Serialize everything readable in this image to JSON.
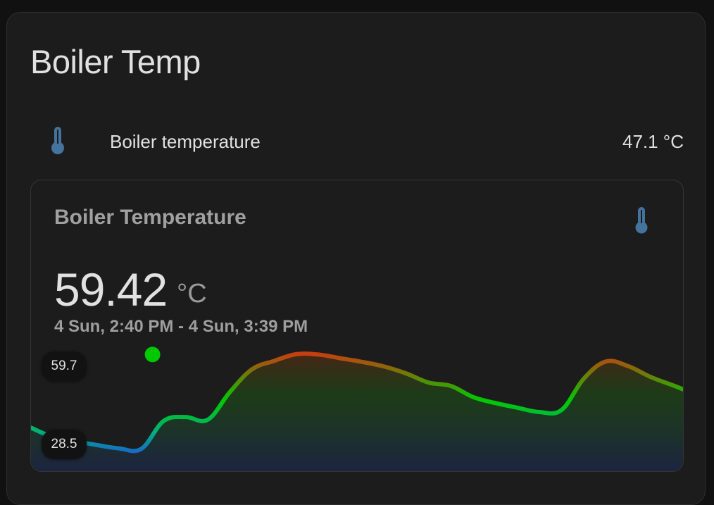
{
  "card": {
    "title": "Boiler Temp"
  },
  "entity": {
    "name": "Boiler temperature",
    "state": "47.1 °C",
    "icon": "thermometer-icon"
  },
  "graph_card": {
    "title": "Boiler Temperature",
    "icon": "thermometer-icon",
    "value": "59.42",
    "unit": "°C",
    "time_range": "4 Sun, 2:40 PM - 4 Sun, 3:39 PM",
    "y_max_label": "59.7",
    "y_min_label": "28.5"
  },
  "colors": {
    "icon": "#44739e",
    "low": "#1e53e0",
    "mid": "#00c800",
    "high": "#c83c10",
    "point": "#00c800"
  },
  "chart_data": {
    "type": "line",
    "title": "",
    "xlabel": "",
    "ylabel": "",
    "ylim": [
      28.5,
      59.7
    ],
    "x_range": [
      "4 Sun, 2:40 PM",
      "4 Sun, 3:39 PM"
    ],
    "x_minutes": [
      0,
      2,
      4,
      6,
      8,
      10,
      12,
      14,
      16,
      18,
      20,
      22,
      24,
      26,
      28,
      30,
      32,
      34,
      36,
      38,
      40,
      42,
      44,
      46,
      48,
      50,
      52,
      54,
      56,
      58,
      59
    ],
    "values": [
      37.5,
      34.7,
      33.5,
      32.3,
      31.3,
      31.2,
      39.5,
      40.7,
      39.9,
      48.2,
      55.0,
      57.5,
      59.5,
      59.4,
      58.3,
      57.2,
      55.8,
      53.7,
      51.0,
      50.0,
      46.7,
      44.9,
      43.5,
      42.2,
      42.8,
      52.1,
      57.3,
      56.0,
      52.8,
      50.3,
      49.0
    ],
    "highlight": {
      "x_minute": 11,
      "value": 59.42
    },
    "grid": false,
    "legend": "none"
  }
}
